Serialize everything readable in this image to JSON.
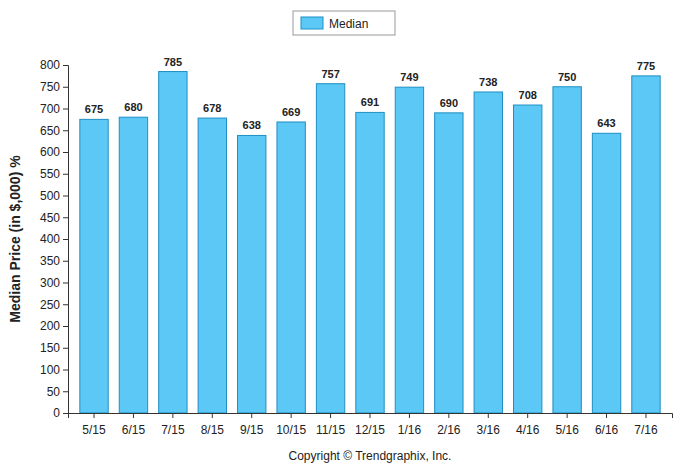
{
  "chart_data": {
    "type": "bar",
    "y_label": "Median Price (in $,000) %",
    "categories": [
      "5/15",
      "6/15",
      "7/15",
      "8/15",
      "9/15",
      "10/15",
      "11/15",
      "12/15",
      "1/16",
      "2/16",
      "3/16",
      "4/16",
      "5/16",
      "6/16",
      "7/16"
    ],
    "series": [
      {
        "name": "Median",
        "color": "#5bc8f5",
        "values": [
          675,
          680,
          785,
          678,
          638,
          669,
          757,
          691,
          749,
          690,
          738,
          708,
          750,
          643,
          775
        ]
      }
    ],
    "ylim": [
      0,
      800
    ],
    "yticks": [
      0,
      50,
      100,
      150,
      200,
      250,
      300,
      350,
      400,
      450,
      500,
      550,
      600,
      650,
      700,
      750,
      800
    ],
    "grid": false,
    "legend": "top",
    "data_labels": true,
    "annotations": [
      "Copyright © Trendgraphix, Inc."
    ]
  }
}
